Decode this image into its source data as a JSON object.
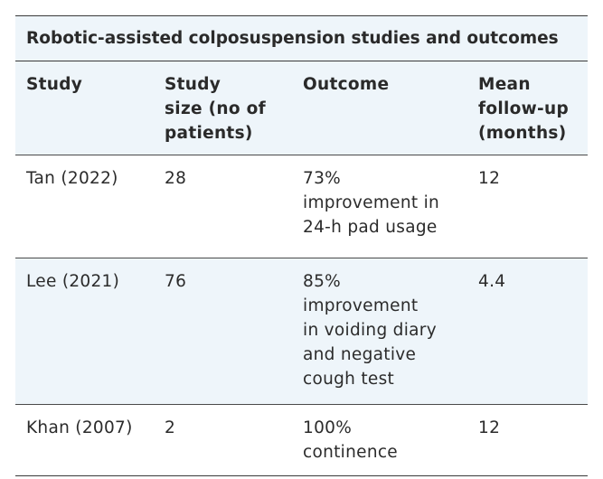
{
  "table": {
    "title": "Robotic-assisted colposuspension studies and outcomes",
    "headers": {
      "study": "Study",
      "size": "Study\nsize (no of\npatients)",
      "outcome": "Outcome",
      "followup": "Mean\nfollow-up\n(months)"
    },
    "rows": [
      {
        "study": "Tan (2022)",
        "size": "28",
        "outcome": "73%\nimprovement in\n24-h pad usage",
        "followup": "12"
      },
      {
        "study": "Lee (2021)",
        "size": "76",
        "outcome": "85%\nimprovement\nin voiding diary\nand negative\ncough test",
        "followup": "4.4"
      },
      {
        "study": "Khan (2007)",
        "size": "2",
        "outcome": "100%\ncontinence",
        "followup": "12"
      }
    ]
  }
}
